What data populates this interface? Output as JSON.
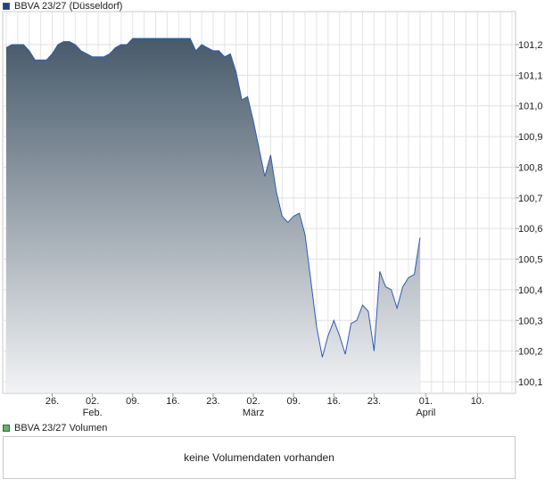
{
  "legend": {
    "price_label": "BBVA 23/27 (Düsseldorf)",
    "price_color": "#1f3f8f",
    "volume_label": "BBVA 23/27 Volumen",
    "volume_color": "#5cb85c"
  },
  "volume_panel": {
    "message": "keine Volumendaten vorhanden"
  },
  "chart_data": {
    "type": "area",
    "title": "",
    "xlabel": "",
    "ylabel": "",
    "ylim": [
      100.06,
      101.26
    ],
    "grid": true,
    "y_axis_side": "right",
    "y_ticks": [
      101.2,
      101.1,
      101.0,
      100.9,
      100.8,
      100.7,
      100.6,
      100.5,
      100.4,
      100.3,
      100.2,
      100.1
    ],
    "y_tick_labels": [
      "101,2",
      "101,1",
      "101,0",
      "100,9",
      "100,8",
      "100,7",
      "100,6",
      "100,5",
      "100,4",
      "100,3",
      "100,2",
      "100,1"
    ],
    "x_ticks": [
      {
        "day": 8,
        "label": "26.",
        "sub": ""
      },
      {
        "day": 15,
        "label": "02.",
        "sub": "Feb."
      },
      {
        "day": 22,
        "label": "09.",
        "sub": ""
      },
      {
        "day": 29,
        "label": "16.",
        "sub": ""
      },
      {
        "day": 36,
        "label": "23.",
        "sub": ""
      },
      {
        "day": 43,
        "label": "02.",
        "sub": "März"
      },
      {
        "day": 50,
        "label": "09.",
        "sub": ""
      },
      {
        "day": 57,
        "label": "16.",
        "sub": ""
      },
      {
        "day": 64,
        "label": "23.",
        "sub": ""
      },
      {
        "day": 73,
        "label": "01.",
        "sub": "April"
      },
      {
        "day": 82,
        "label": "10.",
        "sub": ""
      }
    ],
    "x_range": [
      0,
      88
    ],
    "series": [
      {
        "color": "#2f5cb3",
        "fill_top": "#475a6a",
        "fill_bottom": "#f2f3f5",
        "points": [
          [
            0,
            101.19
          ],
          [
            1,
            101.2
          ],
          [
            2,
            101.2
          ],
          [
            3,
            101.2
          ],
          [
            4,
            101.18
          ],
          [
            5,
            101.15
          ],
          [
            6,
            101.15
          ],
          [
            7,
            101.15
          ],
          [
            8,
            101.17
          ],
          [
            9,
            101.2
          ],
          [
            10,
            101.21
          ],
          [
            11,
            101.21
          ],
          [
            12,
            101.2
          ],
          [
            13,
            101.18
          ],
          [
            14,
            101.17
          ],
          [
            15,
            101.16
          ],
          [
            16,
            101.16
          ],
          [
            17,
            101.16
          ],
          [
            18,
            101.17
          ],
          [
            19,
            101.19
          ],
          [
            20,
            101.2
          ],
          [
            21,
            101.2
          ],
          [
            22,
            101.22
          ],
          [
            23,
            101.22
          ],
          [
            24,
            101.22
          ],
          [
            25,
            101.22
          ],
          [
            26,
            101.22
          ],
          [
            27,
            101.22
          ],
          [
            28,
            101.22
          ],
          [
            29,
            101.22
          ],
          [
            30,
            101.22
          ],
          [
            31,
            101.22
          ],
          [
            32,
            101.22
          ],
          [
            33,
            101.18
          ],
          [
            34,
            101.2
          ],
          [
            35,
            101.19
          ],
          [
            36,
            101.18
          ],
          [
            37,
            101.18
          ],
          [
            38,
            101.16
          ],
          [
            39,
            101.17
          ],
          [
            40,
            101.11
          ],
          [
            41,
            101.02
          ],
          [
            42,
            101.03
          ],
          [
            43,
            100.95
          ],
          [
            44,
            100.86
          ],
          [
            45,
            100.77
          ],
          [
            46,
            100.84
          ],
          [
            47,
            100.72
          ],
          [
            48,
            100.64
          ],
          [
            49,
            100.62
          ],
          [
            50,
            100.64
          ],
          [
            51,
            100.65
          ],
          [
            52,
            100.58
          ],
          [
            53,
            100.43
          ],
          [
            54,
            100.28
          ],
          [
            55,
            100.18
          ],
          [
            56,
            100.25
          ],
          [
            57,
            100.3
          ],
          [
            58,
            100.25
          ],
          [
            59,
            100.19
          ],
          [
            60,
            100.29
          ],
          [
            61,
            100.3
          ],
          [
            62,
            100.35
          ],
          [
            63,
            100.33
          ],
          [
            64,
            100.2
          ],
          [
            65,
            100.46
          ],
          [
            66,
            100.41
          ],
          [
            67,
            100.4
          ],
          [
            68,
            100.34
          ],
          [
            69,
            100.41
          ],
          [
            70,
            100.44
          ],
          [
            71,
            100.45
          ],
          [
            72,
            100.57
          ]
        ]
      }
    ]
  }
}
